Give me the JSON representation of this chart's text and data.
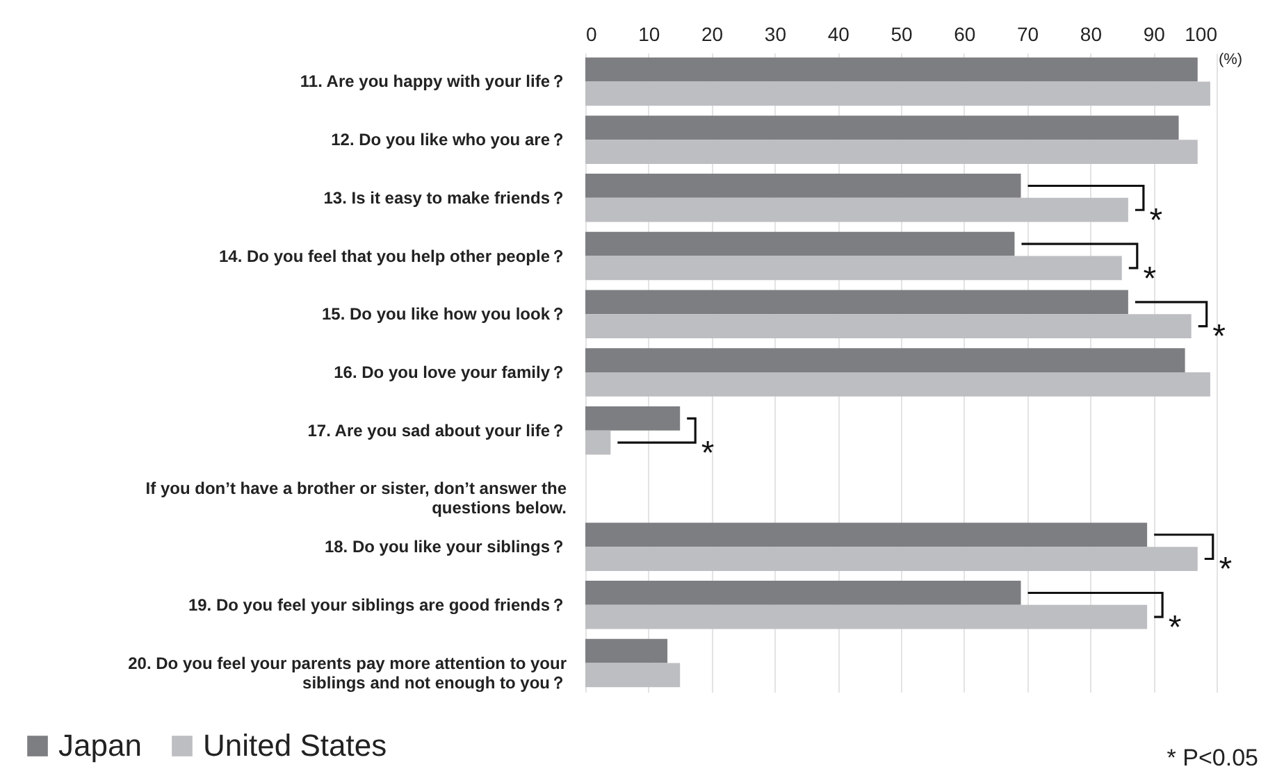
{
  "chart_data": {
    "type": "bar",
    "orientation": "horizontal",
    "xlabel": "(%)",
    "categories": [
      "11. Are you happy with your life？",
      "12. Do you like who you are？",
      "13. Is it easy to make friends？",
      "14. Do you feel that you help other people？",
      "15. Do you like how you look？",
      "16. Do you love your family？",
      "17. Are you sad about your life？",
      "If you don’t have a brother or sister, don’t answer the questions below.",
      "18. Do you like your siblings？",
      "19. Do you feel your siblings are good friends？",
      "20. Do you feel your parents pay more attention to your siblings and not enough to you？"
    ],
    "series": [
      {
        "name": "Japan",
        "color": "#7d7e82",
        "values": [
          97,
          94,
          69,
          68,
          86,
          95,
          15,
          null,
          89,
          69,
          13
        ]
      },
      {
        "name": "United States",
        "color": "#bdbec2",
        "values": [
          99,
          97,
          86,
          85,
          96,
          99,
          4,
          null,
          97,
          89,
          15
        ],
        "value_labels": [
          null,
          null,
          "*",
          "*",
          "*",
          null,
          "*",
          null,
          "*",
          "*",
          null
        ]
      }
    ],
    "xlim": [
      0,
      100
    ],
    "xticks": [
      0,
      10,
      20,
      30,
      40,
      50,
      60,
      70,
      80,
      90,
      100
    ],
    "grid": "x",
    "legend": "bottom left",
    "annotations": [
      "* P<0.05"
    ]
  }
}
